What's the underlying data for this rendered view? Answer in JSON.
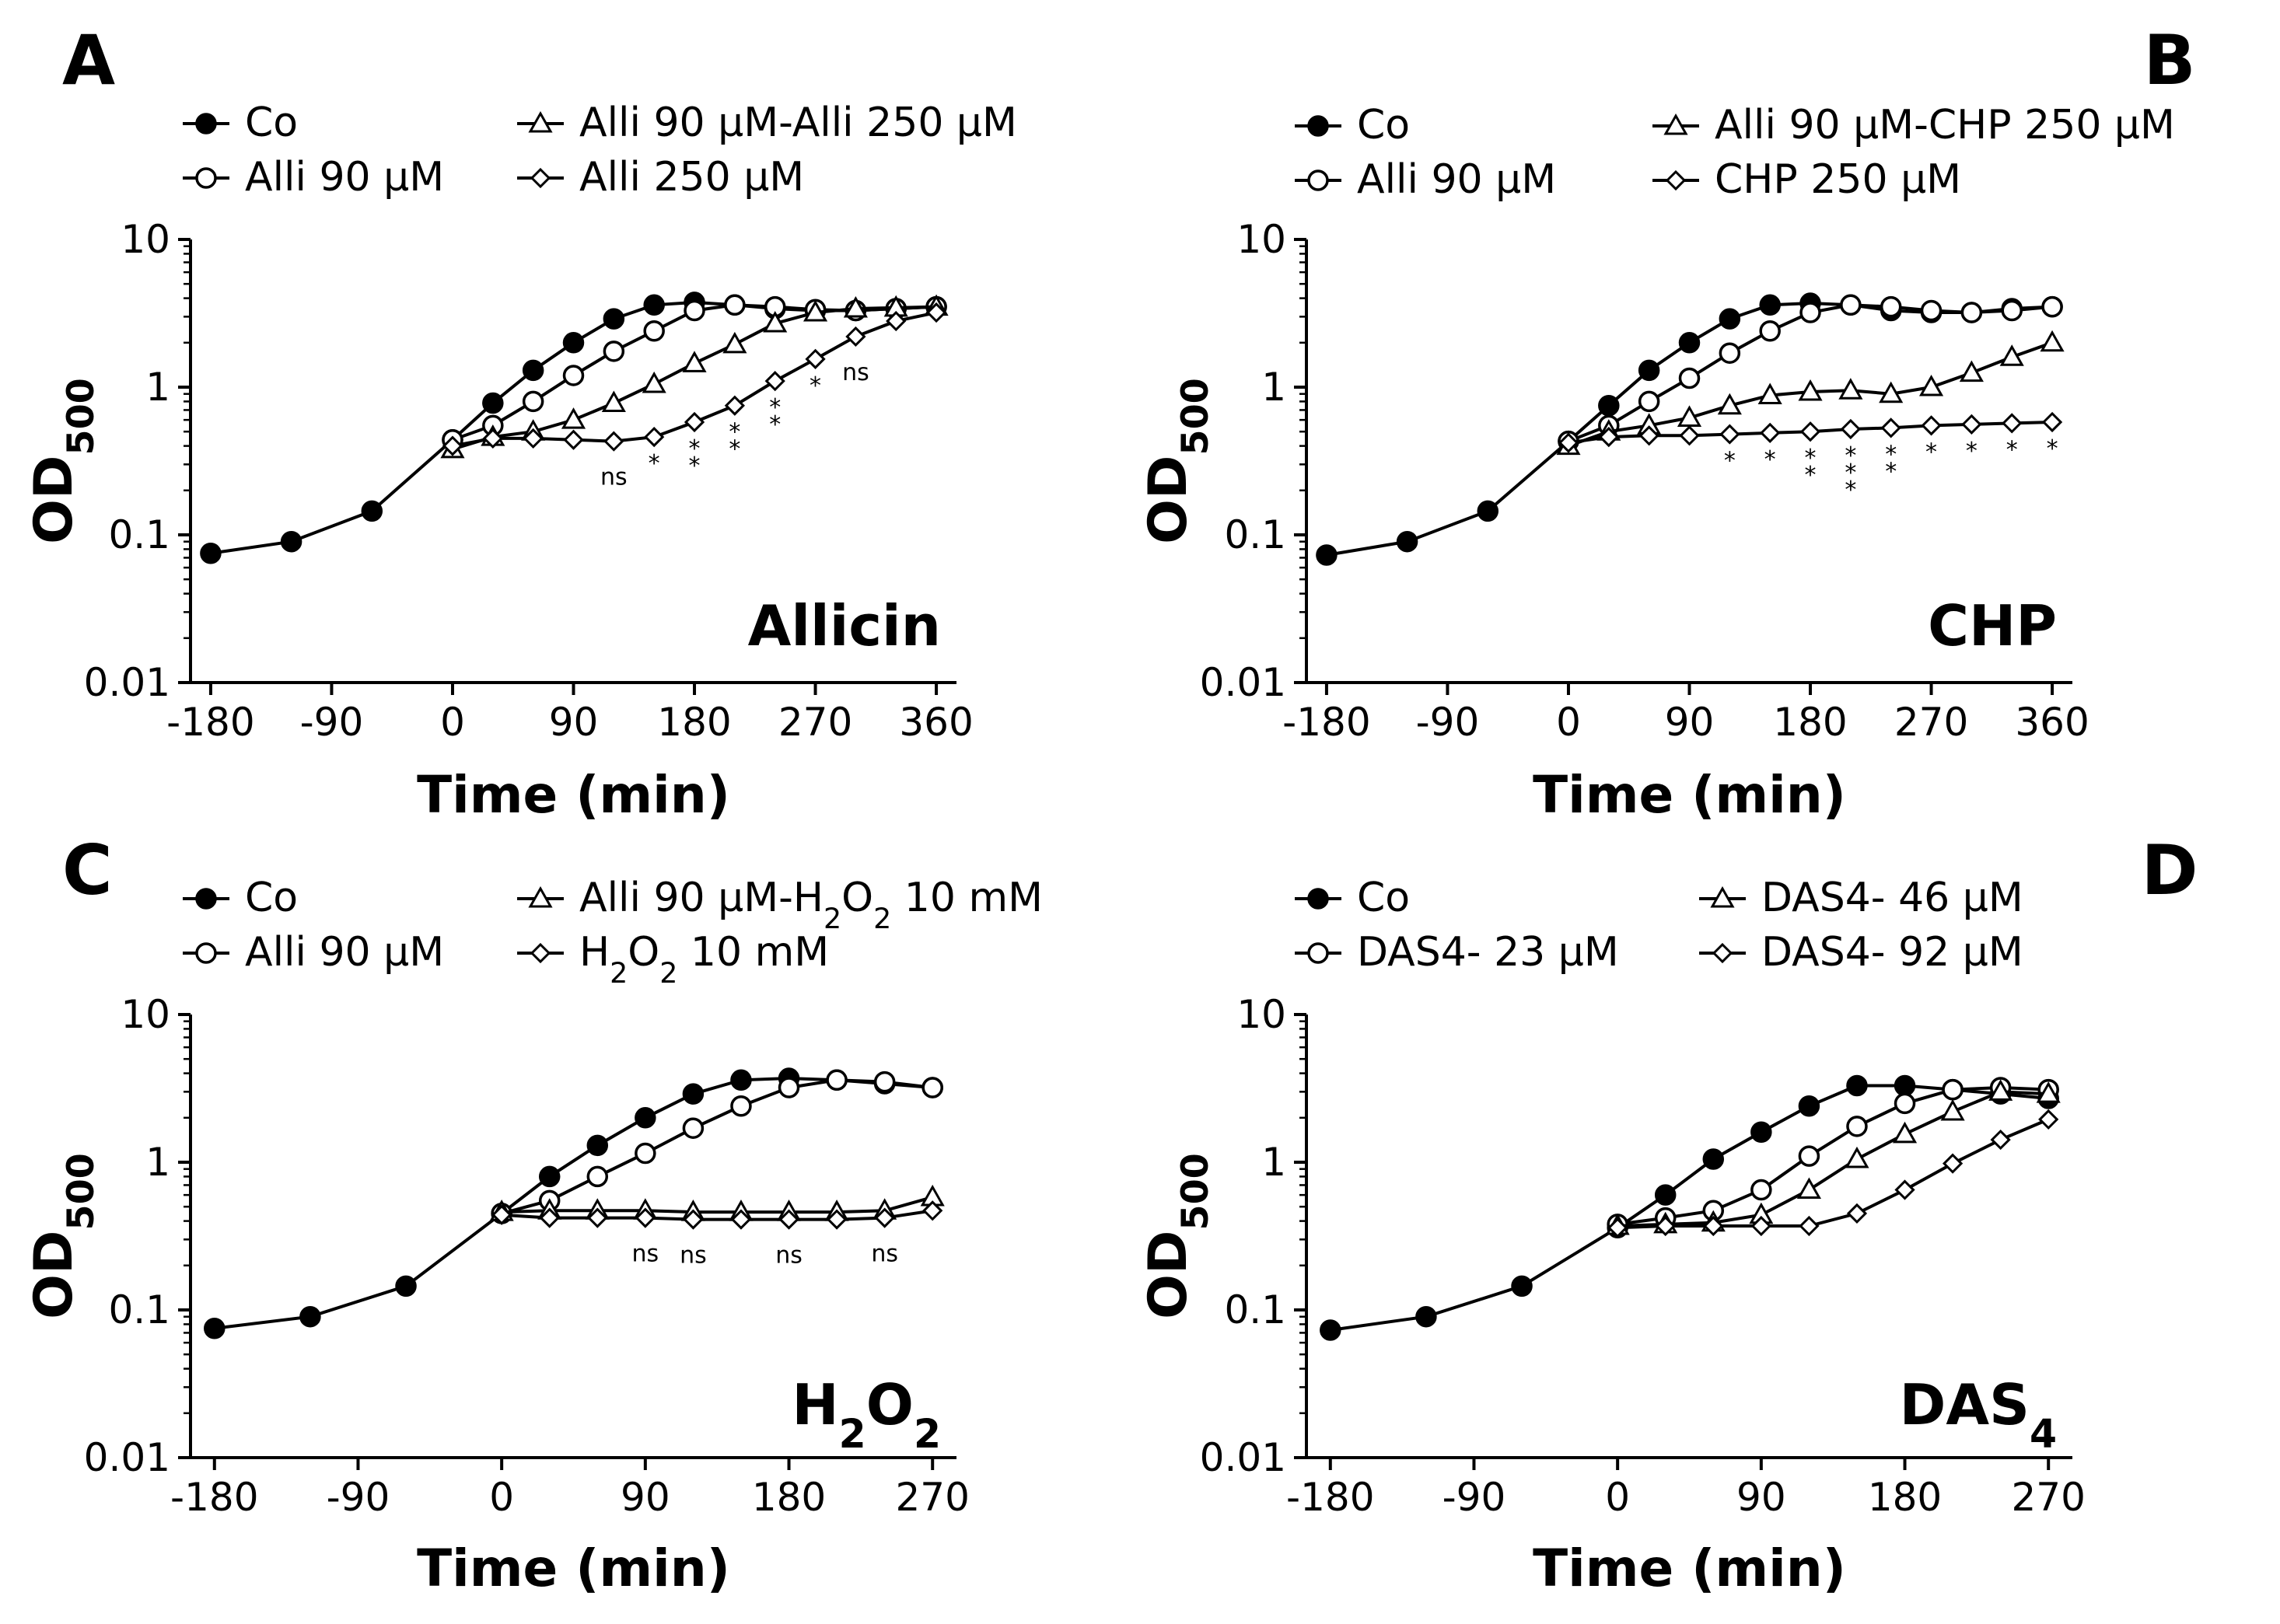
{
  "chart_data": [
    {
      "panel": "A",
      "type": "line",
      "title": "Allicin",
      "xlabel": "Time (min)",
      "ylabel": "OD500",
      "yscale": "log",
      "ylim": [
        0.01,
        10
      ],
      "xlim": [
        -195,
        375
      ],
      "xticks": [
        "-180",
        "-90",
        "0",
        "90",
        "180",
        "270",
        "360"
      ],
      "yticks": [
        "0.01",
        "0.1",
        "1",
        "10"
      ],
      "legend": "top",
      "series": [
        {
          "name": "Co",
          "marker": "circle-filled",
          "x": [
            -180,
            -120,
            -60,
            0,
            30,
            60,
            90,
            120,
            150,
            180,
            210,
            240,
            270,
            300,
            330,
            360
          ],
          "y": [
            0.075,
            0.09,
            0.145,
            0.44,
            0.78,
            1.3,
            2.0,
            2.9,
            3.6,
            3.75,
            3.6,
            3.4,
            3.3,
            3.3,
            3.4,
            3.5
          ]
        },
        {
          "name": "Alli 90 μM",
          "marker": "circle-open",
          "x": [
            0,
            30,
            60,
            90,
            120,
            150,
            180,
            210,
            240,
            270,
            300,
            330,
            360
          ],
          "y": [
            0.44,
            0.55,
            0.8,
            1.2,
            1.75,
            2.4,
            3.3,
            3.6,
            3.5,
            3.35,
            3.3,
            3.4,
            3.5
          ]
        },
        {
          "name": "Alli 90 μM-Alli 250 μM",
          "marker": "triangle-open",
          "x": [
            0,
            30,
            60,
            90,
            120,
            150,
            180,
            210,
            240,
            270,
            300,
            330,
            360
          ],
          "y": [
            0.38,
            0.46,
            0.5,
            0.6,
            0.78,
            1.05,
            1.45,
            1.95,
            2.7,
            3.2,
            3.4,
            3.45,
            3.5
          ]
        },
        {
          "name": "Alli 250 μM",
          "marker": "diamond-open",
          "x": [
            0,
            30,
            60,
            90,
            120,
            150,
            180,
            210,
            240,
            270,
            300,
            330,
            360
          ],
          "y": [
            0.4,
            0.45,
            0.45,
            0.44,
            0.43,
            0.46,
            0.58,
            0.75,
            1.1,
            1.55,
            2.2,
            2.8,
            3.2
          ]
        }
      ],
      "annotations": [
        {
          "x": 120,
          "text": "ns"
        },
        {
          "x": 150,
          "text": "*"
        },
        {
          "x": 180,
          "text": "**"
        },
        {
          "x": 210,
          "text": "**"
        },
        {
          "x": 240,
          "text": "**"
        },
        {
          "x": 270,
          "text": "*"
        },
        {
          "x": 300,
          "text": "ns"
        }
      ]
    },
    {
      "panel": "B",
      "type": "line",
      "title": "CHP",
      "xlabel": "Time (min)",
      "ylabel": "OD500",
      "yscale": "log",
      "ylim": [
        0.01,
        10
      ],
      "xlim": [
        -195,
        375
      ],
      "xticks": [
        "-180",
        "-90",
        "0",
        "90",
        "180",
        "270",
        "360"
      ],
      "yticks": [
        "0.01",
        "0.1",
        "1",
        "10"
      ],
      "legend": "top",
      "series": [
        {
          "name": "Co",
          "marker": "circle-filled",
          "x": [
            -180,
            -120,
            -60,
            0,
            30,
            60,
            90,
            120,
            150,
            180,
            210,
            240,
            270,
            300,
            330,
            360
          ],
          "y": [
            0.073,
            0.09,
            0.145,
            0.43,
            0.75,
            1.3,
            2.0,
            2.9,
            3.6,
            3.7,
            3.6,
            3.3,
            3.2,
            3.2,
            3.4,
            3.5
          ]
        },
        {
          "name": "Alli 90 μM",
          "marker": "circle-open",
          "x": [
            0,
            30,
            60,
            90,
            120,
            150,
            180,
            210,
            240,
            270,
            300,
            330,
            360
          ],
          "y": [
            0.43,
            0.55,
            0.8,
            1.15,
            1.7,
            2.4,
            3.2,
            3.6,
            3.5,
            3.3,
            3.2,
            3.3,
            3.5
          ]
        },
        {
          "name": "Alli 90 μM-CHP 250 μM",
          "marker": "triangle-open",
          "x": [
            0,
            30,
            60,
            90,
            120,
            150,
            180,
            210,
            240,
            270,
            300,
            330,
            360
          ],
          "y": [
            0.4,
            0.5,
            0.55,
            0.62,
            0.75,
            0.88,
            0.93,
            0.95,
            0.9,
            1.0,
            1.25,
            1.6,
            2.0
          ]
        },
        {
          "name": "CHP 250 μM",
          "marker": "diamond-open",
          "x": [
            0,
            30,
            60,
            90,
            120,
            150,
            180,
            210,
            240,
            270,
            300,
            330,
            360
          ],
          "y": [
            0.42,
            0.46,
            0.47,
            0.47,
            0.48,
            0.49,
            0.5,
            0.52,
            0.53,
            0.55,
            0.56,
            0.57,
            0.58
          ]
        }
      ],
      "annotations": [
        {
          "x": 120,
          "text": "*"
        },
        {
          "x": 150,
          "text": "*"
        },
        {
          "x": 180,
          "text": "**"
        },
        {
          "x": 210,
          "text": "***"
        },
        {
          "x": 240,
          "text": "**"
        },
        {
          "x": 270,
          "text": "*"
        },
        {
          "x": 300,
          "text": "*"
        },
        {
          "x": 330,
          "text": "*"
        },
        {
          "x": 360,
          "text": "*"
        }
      ]
    },
    {
      "panel": "C",
      "type": "line",
      "title": "H2O2",
      "xlabel": "Time (min)",
      "ylabel": "OD500",
      "yscale": "log",
      "ylim": [
        0.01,
        10
      ],
      "xlim": [
        -195,
        285
      ],
      "xticks": [
        "-180",
        "-90",
        "0",
        "90",
        "180",
        "270"
      ],
      "yticks": [
        "0.01",
        "0.1",
        "1",
        "10"
      ],
      "legend": "top",
      "series": [
        {
          "name": "Co",
          "marker": "circle-filled",
          "x": [
            -180,
            -120,
            -60,
            0,
            30,
            60,
            90,
            120,
            150,
            180,
            210,
            240,
            270
          ],
          "y": [
            0.075,
            0.09,
            0.145,
            0.45,
            0.8,
            1.3,
            2.0,
            2.9,
            3.6,
            3.7,
            3.6,
            3.4,
            3.2
          ]
        },
        {
          "name": "Alli 90 μM",
          "marker": "circle-open",
          "x": [
            0,
            30,
            60,
            90,
            120,
            150,
            180,
            210,
            240,
            270
          ],
          "y": [
            0.45,
            0.55,
            0.8,
            1.15,
            1.7,
            2.4,
            3.2,
            3.6,
            3.5,
            3.2
          ]
        },
        {
          "name": "Alli 90 μM-H2O2 10 mM",
          "marker": "triangle-open",
          "x": [
            0,
            30,
            60,
            90,
            120,
            150,
            180,
            210,
            240,
            270
          ],
          "y": [
            0.46,
            0.47,
            0.47,
            0.47,
            0.46,
            0.46,
            0.46,
            0.46,
            0.47,
            0.58
          ]
        },
        {
          "name": "H2O2 10 mM",
          "marker": "diamond-open",
          "x": [
            0,
            30,
            60,
            90,
            120,
            150,
            180,
            210,
            240,
            270
          ],
          "y": [
            0.44,
            0.42,
            0.42,
            0.42,
            0.41,
            0.41,
            0.41,
            0.41,
            0.42,
            0.47
          ]
        }
      ],
      "annotations": [
        {
          "x": 90,
          "text": "ns"
        },
        {
          "x": 120,
          "text": "ns"
        },
        {
          "x": 180,
          "text": "ns"
        },
        {
          "x": 240,
          "text": "ns"
        }
      ]
    },
    {
      "panel": "D",
      "type": "line",
      "title": "DAS4",
      "xlabel": "Time (min)",
      "ylabel": "OD500",
      "yscale": "log",
      "ylim": [
        0.01,
        10
      ],
      "xlim": [
        -195,
        285
      ],
      "xticks": [
        "-180",
        "-90",
        "0",
        "90",
        "180",
        "270"
      ],
      "yticks": [
        "0.01",
        "0.1",
        "1",
        "10"
      ],
      "legend": "top",
      "series": [
        {
          "name": "Co",
          "marker": "circle-filled",
          "x": [
            -180,
            -120,
            -60,
            0,
            30,
            60,
            90,
            120,
            150,
            180,
            210,
            240,
            270
          ],
          "y": [
            0.073,
            0.09,
            0.145,
            0.36,
            0.6,
            1.05,
            1.6,
            2.4,
            3.3,
            3.3,
            3.1,
            2.9,
            2.7
          ]
        },
        {
          "name": "DAS4- 23 μM",
          "marker": "circle-open",
          "x": [
            0,
            30,
            60,
            90,
            120,
            150,
            180,
            210,
            240,
            270
          ],
          "y": [
            0.38,
            0.42,
            0.47,
            0.65,
            1.1,
            1.75,
            2.5,
            3.1,
            3.2,
            3.1
          ]
        },
        {
          "name": "DAS4- 46 μM",
          "marker": "triangle-open",
          "x": [
            0,
            30,
            60,
            90,
            120,
            150,
            180,
            210,
            240,
            270
          ],
          "y": [
            0.37,
            0.38,
            0.39,
            0.44,
            0.65,
            1.05,
            1.55,
            2.2,
            3.0,
            2.9
          ]
        },
        {
          "name": "DAS4- 92 μM",
          "marker": "diamond-open",
          "x": [
            0,
            30,
            60,
            90,
            120,
            150,
            180,
            210,
            240,
            270
          ],
          "y": [
            0.36,
            0.37,
            0.37,
            0.37,
            0.37,
            0.45,
            0.65,
            0.98,
            1.42,
            1.95
          ]
        }
      ],
      "annotations": []
    }
  ]
}
